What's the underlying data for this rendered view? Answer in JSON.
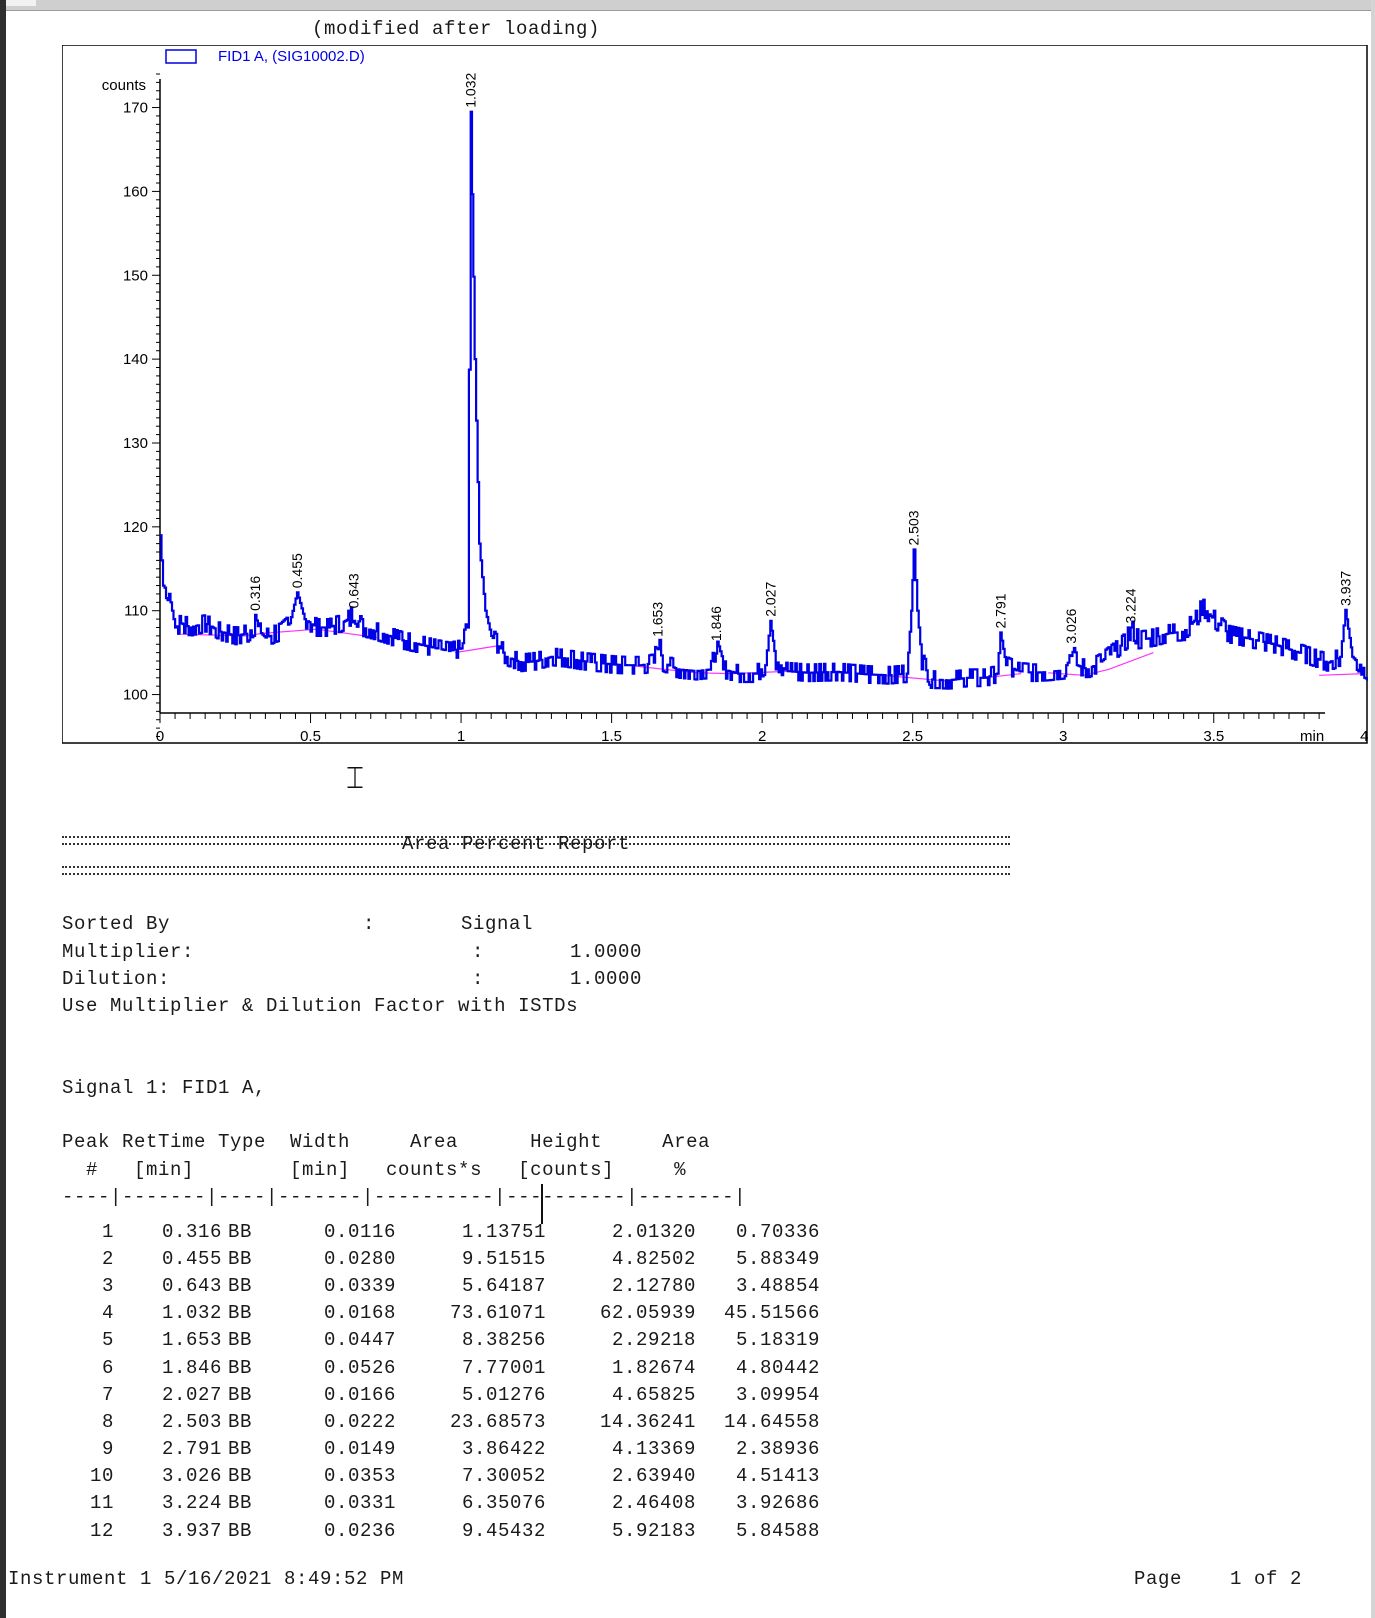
{
  "report": {
    "subtitle": "(modified after loading)",
    "title": "Area Percent Report",
    "sorted_by_label": "Sorted By",
    "sorted_by_value": "Signal",
    "multiplier_label": "Multiplier:",
    "multiplier_value": "1.0000",
    "dilution_label": "Dilution:",
    "dilution_value": "1.0000",
    "istd_note": "Use Multiplier & Dilution Factor with ISTDs",
    "signal_label": "Signal 1: FID1 A,",
    "table_header": {
      "line1": "Peak RetTime Type  Width     Area      Height     Area",
      "line2": "  #   [min]        [min]   counts*s   [counts]     %",
      "line3": "----|-------|----|-------|----------|----------|--------|"
    },
    "rows": [
      {
        "peak": "1",
        "rettime": "0.316",
        "type": "BB",
        "width": "0.0116",
        "area": "1.13751",
        "height": "2.01320",
        "area_pct": "0.70336"
      },
      {
        "peak": "2",
        "rettime": "0.455",
        "type": "BB",
        "width": "0.0280",
        "area": "9.51515",
        "height": "4.82502",
        "area_pct": "5.88349"
      },
      {
        "peak": "3",
        "rettime": "0.643",
        "type": "BB",
        "width": "0.0339",
        "area": "5.64187",
        "height": "2.12780",
        "area_pct": "3.48854"
      },
      {
        "peak": "4",
        "rettime": "1.032",
        "type": "BB",
        "width": "0.0168",
        "area": "73.61071",
        "height": "62.05939",
        "area_pct": "45.51566"
      },
      {
        "peak": "5",
        "rettime": "1.653",
        "type": "BB",
        "width": "0.0447",
        "area": "8.38256",
        "height": "2.29218",
        "area_pct": "5.18319"
      },
      {
        "peak": "6",
        "rettime": "1.846",
        "type": "BB",
        "width": "0.0526",
        "area": "7.77001",
        "height": "1.82674",
        "area_pct": "4.80442"
      },
      {
        "peak": "7",
        "rettime": "2.027",
        "type": "BB",
        "width": "0.0166",
        "area": "5.01276",
        "height": "4.65825",
        "area_pct": "3.09954"
      },
      {
        "peak": "8",
        "rettime": "2.503",
        "type": "BB",
        "width": "0.0222",
        "area": "23.68573",
        "height": "14.36241",
        "area_pct": "14.64558"
      },
      {
        "peak": "9",
        "rettime": "2.791",
        "type": "BB",
        "width": "0.0149",
        "area": "3.86422",
        "height": "4.13369",
        "area_pct": "2.38936"
      },
      {
        "peak": "10",
        "rettime": "3.026",
        "type": "BB",
        "width": "0.0353",
        "area": "7.30052",
        "height": "2.63940",
        "area_pct": "4.51413"
      },
      {
        "peak": "11",
        "rettime": "3.224",
        "type": "BB",
        "width": "0.0331",
        "area": "6.35076",
        "height": "2.46408",
        "area_pct": "3.92686"
      },
      {
        "peak": "12",
        "rettime": "3.937",
        "type": "BB",
        "width": "0.0236",
        "area": "9.45432",
        "height": "5.92183",
        "area_pct": "5.84588"
      }
    ]
  },
  "footer": {
    "instrument": "Instrument 1 5/16/2021 8:49:52 PM",
    "page": "Page    1 of 2"
  },
  "colors": {
    "trace": "#0000e6",
    "baseline": "#ff33ff",
    "axis": "#000000"
  },
  "chart_data": {
    "type": "line",
    "legend": "FID1 A, (SIG10002.D)",
    "ylabel": "counts",
    "xunit": "min",
    "xlim": [
      0,
      4.2
    ],
    "ylim": [
      95,
      174
    ],
    "x_ticks": [
      0,
      0.5,
      1,
      1.5,
      2,
      2.5,
      3,
      3.5,
      4
    ],
    "x_tick_labels": [
      "0",
      "0.5",
      "1",
      "1.5",
      "2",
      "2.5",
      "3",
      "3.5",
      "4"
    ],
    "y_ticks": [
      100,
      110,
      120,
      130,
      140,
      150,
      160,
      170
    ],
    "y_tick_labels": [
      "100",
      "110",
      "120",
      "130",
      "140",
      "150",
      "160",
      "170"
    ],
    "grid": false,
    "legend_position": "top-left",
    "peaks": [
      {
        "label": "0.316",
        "rt": 0.316,
        "apex": 109.5
      },
      {
        "label": "0.455",
        "rt": 0.455,
        "apex": 112.2
      },
      {
        "label": "0.643",
        "rt": 0.643,
        "apex": 109.8
      },
      {
        "label": "1.032",
        "rt": 1.032,
        "apex": 169.5
      },
      {
        "label": "1.653",
        "rt": 1.653,
        "apex": 106.4
      },
      {
        "label": "1.846",
        "rt": 1.846,
        "apex": 105.9
      },
      {
        "label": "2.027",
        "rt": 2.027,
        "apex": 108.8
      },
      {
        "label": "2.503",
        "rt": 2.503,
        "apex": 117.3
      },
      {
        "label": "2.791",
        "rt": 2.791,
        "apex": 107.4
      },
      {
        "label": "3.026",
        "rt": 3.026,
        "apex": 105.6
      },
      {
        "label": "3.224",
        "rt": 3.224,
        "apex": 108.0
      },
      {
        "label": "3.937",
        "rt": 3.937,
        "apex": 110.1
      }
    ],
    "series": [
      {
        "name": "FID1 A, (SIG10002.D)",
        "x": [
          0.0,
          0.01,
          0.03,
          0.05,
          0.07,
          0.1,
          0.15,
          0.2,
          0.25,
          0.29,
          0.31,
          0.316,
          0.33,
          0.35,
          0.4,
          0.43,
          0.455,
          0.48,
          0.52,
          0.56,
          0.6,
          0.625,
          0.643,
          0.67,
          0.72,
          0.8,
          0.86,
          0.92,
          0.96,
          1.0,
          1.02,
          1.032,
          1.045,
          1.06,
          1.08,
          1.1,
          1.12,
          1.15,
          1.2,
          1.25,
          1.3,
          1.35,
          1.4,
          1.45,
          1.5,
          1.55,
          1.6,
          1.64,
          1.653,
          1.67,
          1.72,
          1.78,
          1.83,
          1.846,
          1.87,
          1.92,
          1.98,
          2.01,
          2.027,
          2.045,
          2.08,
          2.15,
          2.25,
          2.35,
          2.42,
          2.48,
          2.495,
          2.503,
          2.515,
          2.53,
          2.56,
          2.62,
          2.68,
          2.74,
          2.78,
          2.791,
          2.81,
          2.85,
          2.9,
          2.95,
          3.0,
          3.015,
          3.026,
          3.045,
          3.08,
          3.12,
          3.18,
          3.21,
          3.224,
          3.25,
          3.3,
          3.35,
          3.4,
          3.44,
          3.46,
          3.5,
          3.55,
          3.6,
          3.7,
          3.8,
          3.88,
          3.92,
          3.937,
          3.96,
          4.0,
          4.05,
          4.1,
          4.15,
          4.2
        ],
        "y": [
          119,
          113,
          112,
          108,
          108.5,
          108,
          108.5,
          107.5,
          107,
          107.3,
          108,
          109.5,
          107.5,
          106.8,
          107.5,
          108.5,
          112.2,
          109,
          108,
          108,
          108.5,
          109,
          109.8,
          108,
          107.5,
          106.5,
          106,
          105.5,
          105.2,
          105.5,
          108,
          169.5,
          140,
          118,
          110,
          107,
          106,
          104.5,
          103.8,
          104,
          104.5,
          104.3,
          104,
          103.8,
          103.6,
          103.5,
          103.5,
          103.8,
          106.4,
          103.8,
          103,
          102.8,
          103,
          105.9,
          103,
          102.5,
          102.5,
          103.5,
          108.8,
          104,
          102.8,
          102.6,
          102.7,
          102.4,
          102.3,
          102.5,
          110,
          117.3,
          110,
          104,
          101.8,
          101.7,
          102,
          102,
          102.5,
          107.4,
          103.5,
          102.8,
          102.6,
          102.7,
          102.9,
          103.8,
          105.6,
          103.5,
          103,
          103.8,
          105.5,
          106.5,
          108.0,
          106.5,
          106.8,
          107.3,
          107.5,
          109,
          110.5,
          109,
          107.2,
          106.8,
          106,
          104.8,
          103.8,
          104.5,
          110.1,
          104.5,
          103.0,
          102.2,
          102.0,
          101.5,
          101.5
        ]
      }
    ],
    "baselines": [
      {
        "x": [
          0.07,
          0.28,
          0.34,
          0.52,
          0.72
        ],
        "y": [
          107.2,
          107.0,
          107.3,
          107.8,
          106.8
        ]
      },
      {
        "x": [
          0.98,
          1.12
        ],
        "y": [
          105.0,
          105.8
        ]
      },
      {
        "x": [
          1.58,
          1.78,
          1.9,
          2.1
        ],
        "y": [
          103.4,
          102.6,
          102.5,
          102.8
        ]
      },
      {
        "x": [
          2.4,
          2.62
        ],
        "y": [
          102.3,
          101.6
        ]
      },
      {
        "x": [
          2.74,
          2.86
        ],
        "y": [
          102.0,
          102.5
        ]
      },
      {
        "x": [
          2.95,
          3.07,
          3.15,
          3.3
        ],
        "y": [
          102.6,
          102.3,
          103.0,
          105.0
        ]
      },
      {
        "x": [
          3.85,
          4.0
        ],
        "y": [
          102.3,
          102.5
        ]
      }
    ]
  }
}
